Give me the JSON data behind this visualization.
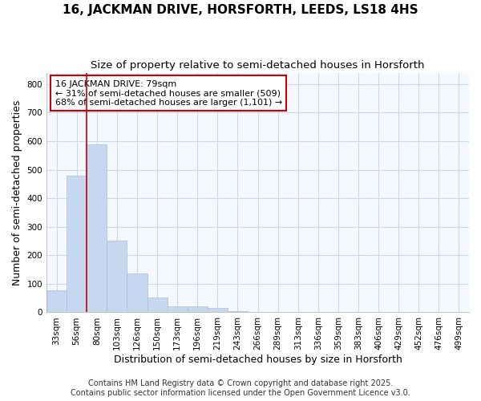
{
  "title": "16, JACKMAN DRIVE, HORSFORTH, LEEDS, LS18 4HS",
  "subtitle": "Size of property relative to semi-detached houses in Horsforth",
  "xlabel": "Distribution of semi-detached houses by size in Horsforth",
  "ylabel": "Number of semi-detached properties",
  "categories": [
    "33sqm",
    "56sqm",
    "80sqm",
    "103sqm",
    "126sqm",
    "150sqm",
    "173sqm",
    "196sqm",
    "219sqm",
    "243sqm",
    "266sqm",
    "289sqm",
    "313sqm",
    "336sqm",
    "359sqm",
    "383sqm",
    "406sqm",
    "429sqm",
    "452sqm",
    "476sqm",
    "499sqm"
  ],
  "values": [
    78,
    480,
    590,
    250,
    135,
    53,
    22,
    22,
    15,
    5,
    2,
    2,
    2,
    1,
    0,
    0,
    0,
    0,
    0,
    0,
    0
  ],
  "bar_color": "#c5d8f0",
  "bar_edge_color": "#aabfd8",
  "vline_color": "#cc0000",
  "vline_pos": 1.5,
  "annotation_text_line1": "16 JACKMAN DRIVE: 79sqm",
  "annotation_text_line2": "← 31% of semi-detached houses are smaller (509)",
  "annotation_text_line3": "68% of semi-detached houses are larger (1,101) →",
  "annotation_box_color": "#cc0000",
  "annotation_box_bg": "#ffffff",
  "ylim": [
    0,
    840
  ],
  "yticks": [
    0,
    100,
    200,
    300,
    400,
    500,
    600,
    700,
    800
  ],
  "footer_line1": "Contains HM Land Registry data © Crown copyright and database right 2025.",
  "footer_line2": "Contains public sector information licensed under the Open Government Licence v3.0.",
  "bg_color": "#ffffff",
  "plot_bg_color": "#f5f8ff",
  "grid_color": "#c8d8ee",
  "title_fontsize": 11,
  "subtitle_fontsize": 9.5,
  "axis_label_fontsize": 9,
  "tick_fontsize": 7.5,
  "annotation_fontsize": 8,
  "footer_fontsize": 7
}
